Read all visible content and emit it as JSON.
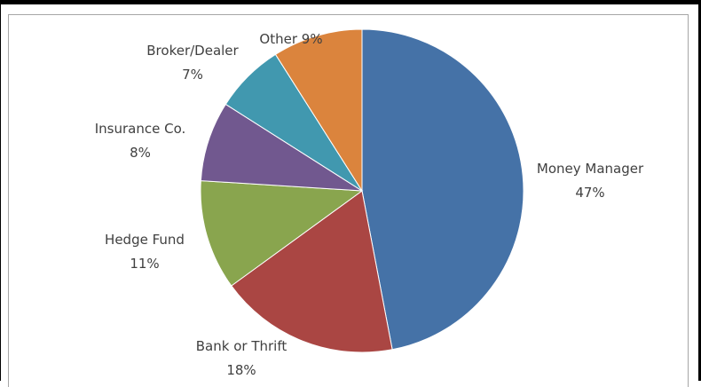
{
  "chart_data": {
    "type": "pie",
    "title": "",
    "slices": [
      {
        "label": "Money Manager",
        "value": 47,
        "value_label": "47%",
        "color": "#4572a7"
      },
      {
        "label": "Bank or Thrift",
        "value": 18,
        "value_label": "18%",
        "color": "#aa4643"
      },
      {
        "label": "Hedge Fund",
        "value": 11,
        "value_label": "11%",
        "color": "#89a54e"
      },
      {
        "label": "Insurance Co.",
        "value": 8,
        "value_label": "8%",
        "color": "#71588f"
      },
      {
        "label": "Broker/Dealer",
        "value": 7,
        "value_label": "7%",
        "color": "#4198af"
      },
      {
        "label": "Other",
        "value": 9,
        "value_label": "9%",
        "color": "#db843d"
      }
    ],
    "start_angle_deg": 0,
    "direction": "clockwise",
    "legend": "none",
    "data_labels": "outside"
  }
}
